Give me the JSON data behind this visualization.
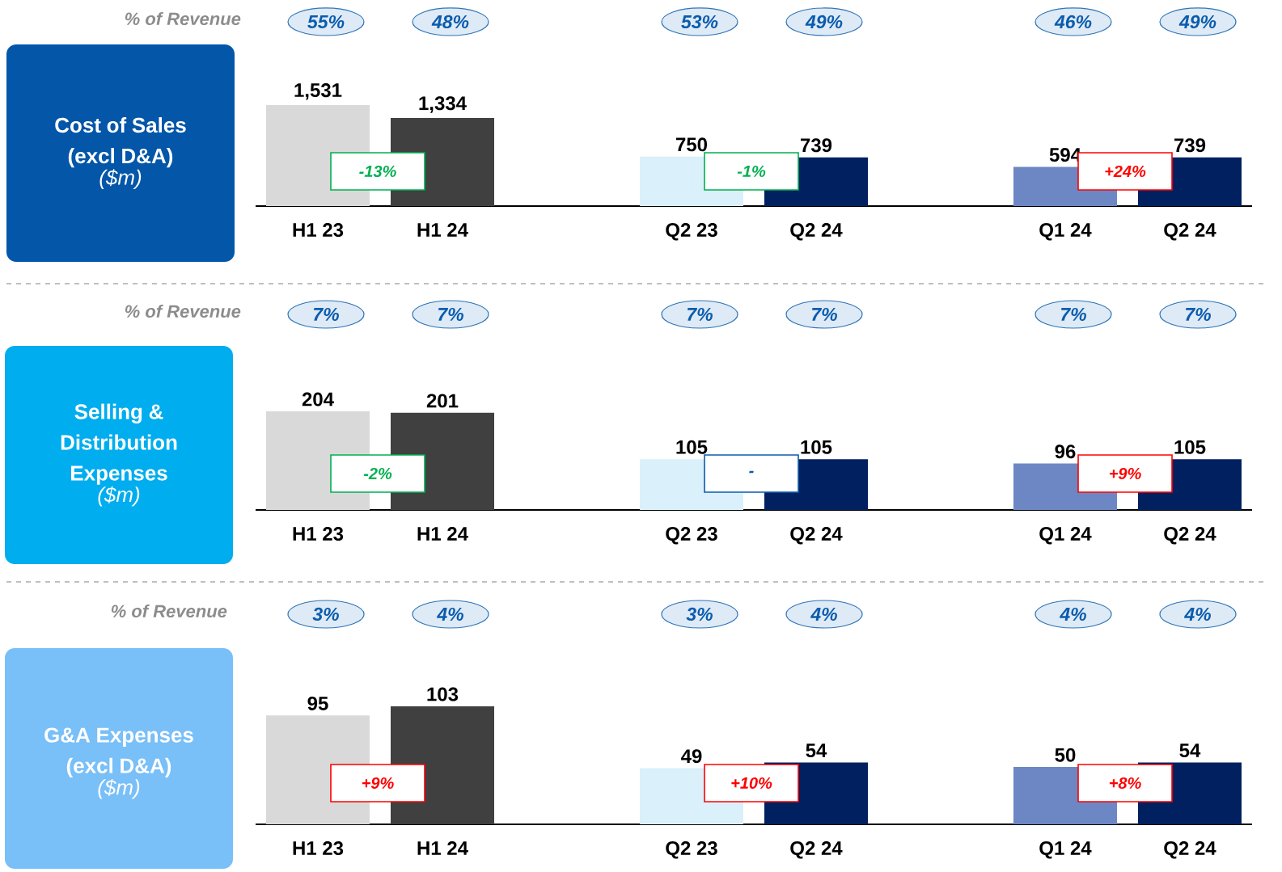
{
  "chart_data": [
    {
      "type": "bar",
      "title": "Cost of Sales (excl D&A)",
      "subtitle": "($m)",
      "categories": [
        "H1 23",
        "H1 24",
        null,
        "Q2 23",
        "Q2 24",
        null,
        "Q1 24",
        "Q2 24"
      ],
      "values": [
        1531,
        1334,
        null,
        750,
        739,
        null,
        594,
        739
      ],
      "colors": [
        "#d9d9d9",
        "#404040",
        null,
        "#daf0fb",
        "#002060",
        null,
        "#6d87c4",
        "#002060"
      ],
      "value_labels": [
        "1,531",
        "1,334",
        null,
        "750",
        "739",
        null,
        "594",
        "739"
      ],
      "annotations": [
        "% of Revenue",
        "55%",
        "48%",
        "53%",
        "49%",
        "46%",
        "49%",
        "-13%",
        "-1%",
        "+24%"
      ]
    },
    {
      "type": "bar",
      "title": "Selling & Distribution Expenses",
      "subtitle": "($m)",
      "categories": [
        "H1 23",
        "H1 24",
        null,
        "Q2 23",
        "Q2 24",
        null,
        "Q1 24",
        "Q2 24"
      ],
      "values": [
        204,
        201,
        null,
        105,
        105,
        null,
        96,
        105
      ],
      "colors": [
        "#d9d9d9",
        "#404040",
        null,
        "#daf0fb",
        "#002060",
        null,
        "#6d87c4",
        "#002060"
      ],
      "value_labels": [
        "204",
        "201",
        null,
        "105",
        "105",
        null,
        "96",
        "105"
      ],
      "annotations": [
        "% of Revenue",
        "7%",
        "7%",
        "7%",
        "7%",
        "7%",
        "7%",
        "-2%",
        "-",
        "+9%"
      ]
    },
    {
      "type": "bar",
      "title": "G&A Expenses (excl D&A)",
      "subtitle": "($m)",
      "categories": [
        "H1 23",
        "H1 24",
        null,
        "Q2 23",
        "Q2 24",
        null,
        "Q1 24",
        "Q2 24"
      ],
      "values": [
        95,
        103,
        null,
        49,
        54,
        null,
        50,
        54
      ],
      "colors": [
        "#d9d9d9",
        "#404040",
        null,
        "#daf0fb",
        "#002060",
        null,
        "#6d87c4",
        "#002060"
      ],
      "value_labels": [
        "95",
        "103",
        null,
        "49",
        "54",
        null,
        "50",
        "54"
      ],
      "annotations": [
        "% of Revenue",
        "3%",
        "4%",
        "3%",
        "4%",
        "4%",
        "4%",
        "+9%",
        "+10%",
        "+8%"
      ]
    }
  ]
}
